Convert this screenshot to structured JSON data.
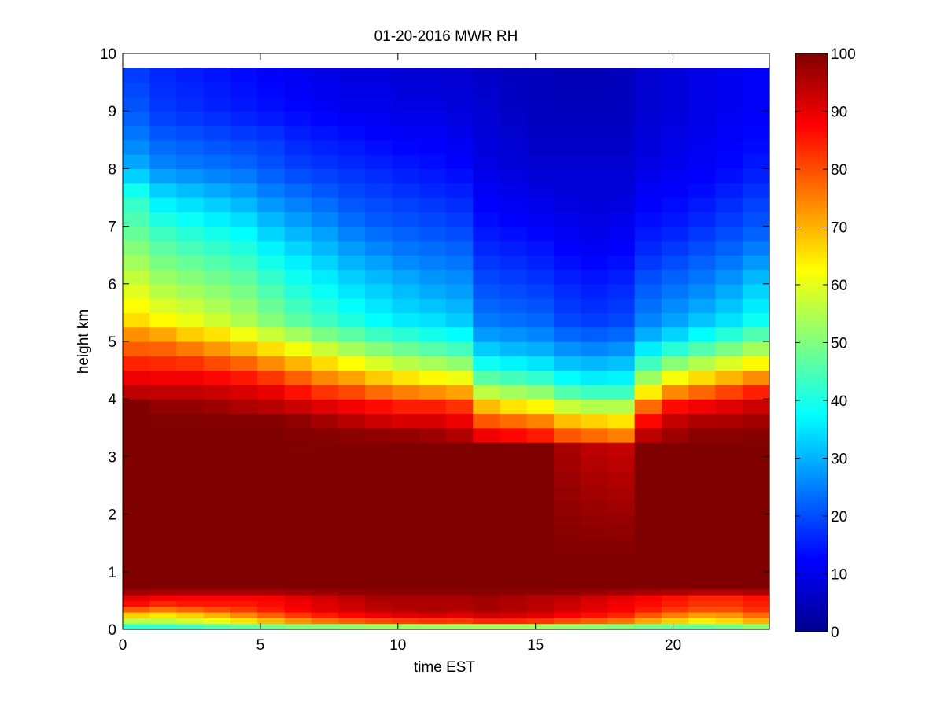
{
  "chart_data": {
    "type": "heatmap",
    "title": "01-20-2016 MWR RH",
    "xlabel": "time EST",
    "ylabel": "height km",
    "xlim": [
      0,
      23.5
    ],
    "ylim": [
      0,
      10
    ],
    "x_ticks": [
      0,
      5,
      10,
      15,
      20
    ],
    "y_ticks": [
      0,
      1,
      2,
      3,
      4,
      5,
      6,
      7,
      8,
      9,
      10
    ],
    "colorbar": {
      "range": [
        0,
        100
      ],
      "ticks": [
        0,
        10,
        20,
        30,
        40,
        50,
        60,
        70,
        80,
        90,
        100
      ],
      "colormap": "jet"
    },
    "x": [
      0.5,
      1.5,
      2.5,
      3.5,
      4.5,
      5.5,
      6.5,
      7.5,
      8.5,
      9.5,
      10.5,
      11.5,
      12.5,
      13.5,
      14.5,
      15.5,
      16.5,
      17.5,
      18.5,
      19.5,
      20.5,
      21.5,
      22.5,
      23.5
    ],
    "y": [
      0,
      0.1,
      0.2,
      0.3,
      0.4,
      0.5,
      0.6,
      0.7,
      0.8,
      0.9,
      1.0,
      1.1,
      1.2,
      1.3,
      1.4,
      1.5,
      1.6,
      1.8,
      2.0,
      2.25,
      2.5,
      2.75,
      3.0,
      3.25,
      3.5,
      3.75,
      4.0,
      4.25,
      4.5,
      4.75,
      5.0,
      5.25,
      5.5,
      5.75,
      6.0,
      6.25,
      6.5,
      6.75,
      7.0,
      7.25,
      7.5,
      7.75,
      8.0,
      8.25,
      8.5,
      8.75,
      9.0,
      9.25,
      9.5,
      9.75
    ],
    "z_profile_knots": {
      "heights": [
        0.0,
        0.1,
        0.2,
        0.3,
        0.4,
        0.55,
        0.7,
        0.85,
        1.0,
        1.15,
        1.2,
        1.25,
        3.2,
        3.3,
        3.6,
        3.9,
        4.2,
        4.5,
        4.8,
        5.1,
        5.4,
        6.0,
        6.5,
        7.0,
        7.5,
        8.0,
        8.5,
        9.0,
        9.75
      ],
      "note_values_rh": "per-time vertical profiles below"
    },
    "profiles_rh": [
      [
        35,
        50,
        62,
        72,
        85,
        90,
        100,
        100,
        100,
        100,
        100,
        100,
        100,
        100,
        100,
        100,
        92,
        87,
        80,
        74,
        65,
        58,
        52,
        46,
        42,
        30,
        25,
        21,
        18
      ],
      [
        34,
        52,
        60,
        70,
        82,
        88,
        100,
        100,
        100,
        100,
        100,
        100,
        100,
        100,
        100,
        98,
        92,
        86,
        80,
        72,
        62,
        54,
        48,
        42,
        35,
        26,
        22,
        18,
        16
      ],
      [
        33,
        55,
        62,
        72,
        84,
        88,
        100,
        100,
        100,
        100,
        100,
        100,
        100,
        100,
        100,
        98,
        92,
        86,
        78,
        68,
        60,
        52,
        46,
        40,
        33,
        25,
        21,
        17,
        15
      ],
      [
        33,
        58,
        64,
        76,
        84,
        88,
        100,
        100,
        100,
        100,
        100,
        100,
        100,
        100,
        100,
        97,
        91,
        84,
        75,
        66,
        57,
        50,
        44,
        38,
        31,
        24,
        20,
        16,
        14
      ],
      [
        32,
        62,
        68,
        80,
        84,
        88,
        100,
        100,
        100,
        100,
        100,
        100,
        100,
        100,
        100,
        95,
        90,
        82,
        72,
        62,
        54,
        48,
        42,
        36,
        29,
        23,
        19,
        15,
        13
      ],
      [
        32,
        66,
        72,
        84,
        86,
        88,
        100,
        100,
        100,
        100,
        100,
        100,
        100,
        100,
        100,
        94,
        88,
        78,
        68,
        58,
        50,
        44,
        38,
        32,
        26,
        21,
        18,
        14,
        12
      ],
      [
        31,
        70,
        76,
        88,
        88,
        90,
        100,
        100,
        100,
        100,
        100,
        100,
        100,
        100,
        99,
        92,
        84,
        74,
        64,
        54,
        46,
        40,
        35,
        29,
        24,
        19,
        16,
        13,
        11
      ],
      [
        30,
        72,
        80,
        90,
        90,
        92,
        100,
        100,
        100,
        100,
        100,
        100,
        100,
        100,
        97,
        90,
        80,
        70,
        60,
        50,
        43,
        37,
        32,
        27,
        22,
        18,
        15,
        12,
        10
      ],
      [
        30,
        74,
        82,
        92,
        92,
        94,
        100,
        100,
        100,
        100,
        100,
        100,
        100,
        100,
        95,
        88,
        78,
        67,
        56,
        47,
        40,
        34,
        29,
        24,
        20,
        17,
        14,
        11,
        9
      ],
      [
        30,
        76,
        84,
        94,
        94,
        96,
        100,
        100,
        100,
        100,
        100,
        100,
        100,
        100,
        93,
        86,
        74,
        63,
        53,
        44,
        37,
        32,
        27,
        22,
        19,
        16,
        13,
        11,
        9
      ],
      [
        29,
        77,
        86,
        95,
        95,
        96,
        100,
        100,
        100,
        100,
        100,
        100,
        100,
        100,
        92,
        84,
        72,
        60,
        50,
        42,
        35,
        30,
        25,
        21,
        18,
        15,
        12,
        10,
        8
      ],
      [
        29,
        78,
        87,
        96,
        95,
        96,
        100,
        100,
        100,
        100,
        100,
        100,
        100,
        99,
        92,
        84,
        70,
        58,
        48,
        40,
        34,
        28,
        24,
        20,
        17,
        14,
        12,
        10,
        8
      ],
      [
        29,
        78,
        86,
        95,
        95,
        96,
        100,
        100,
        100,
        100,
        100,
        100,
        100,
        97,
        90,
        82,
        68,
        56,
        46,
        38,
        32,
        27,
        23,
        19,
        16,
        13,
        11,
        9,
        8
      ],
      [
        28,
        80,
        88,
        96,
        96,
        97,
        100,
        100,
        100,
        100,
        100,
        100,
        100,
        92,
        80,
        68,
        52,
        42,
        34,
        28,
        24,
        20,
        17,
        14,
        12,
        10,
        9,
        8,
        7
      ],
      [
        28,
        80,
        88,
        95,
        95,
        96,
        100,
        100,
        100,
        100,
        100,
        100,
        100,
        90,
        78,
        64,
        50,
        40,
        32,
        27,
        23,
        19,
        16,
        13,
        11,
        9,
        8,
        7,
        6
      ],
      [
        28,
        79,
        86,
        94,
        94,
        95,
        100,
        100,
        100,
        100,
        100,
        100,
        100,
        88,
        76,
        62,
        48,
        38,
        31,
        26,
        22,
        18,
        15,
        12,
        10,
        8,
        7,
        6,
        6
      ],
      [
        28,
        76,
        84,
        92,
        92,
        94,
        100,
        100,
        100,
        100,
        100,
        100,
        96,
        82,
        70,
        56,
        42,
        34,
        28,
        23,
        19,
        16,
        13,
        11,
        9,
        8,
        7,
        6,
        5
      ],
      [
        29,
        74,
        82,
        90,
        90,
        92,
        100,
        100,
        100,
        100,
        100,
        100,
        94,
        80,
        68,
        54,
        40,
        33,
        27,
        22,
        18,
        15,
        12,
        10,
        9,
        8,
        7,
        6,
        5
      ],
      [
        29,
        72,
        80,
        88,
        88,
        90,
        100,
        100,
        100,
        100,
        100,
        100,
        93,
        78,
        66,
        54,
        40,
        34,
        28,
        23,
        19,
        16,
        13,
        11,
        9,
        8,
        7,
        6,
        6
      ],
      [
        30,
        68,
        74,
        84,
        86,
        88,
        100,
        100,
        100,
        100,
        100,
        100,
        100,
        96,
        88,
        76,
        60,
        48,
        38,
        30,
        25,
        21,
        17,
        14,
        12,
        10,
        9,
        8,
        8
      ],
      [
        32,
        64,
        70,
        80,
        84,
        86,
        100,
        100,
        100,
        100,
        100,
        100,
        100,
        98,
        94,
        86,
        70,
        56,
        44,
        34,
        28,
        23,
        19,
        15,
        13,
        11,
        10,
        9,
        9
      ],
      [
        33,
        62,
        66,
        78,
        82,
        84,
        100,
        100,
        100,
        100,
        100,
        100,
        100,
        100,
        96,
        88,
        74,
        60,
        48,
        38,
        31,
        25,
        21,
        17,
        14,
        12,
        11,
        10,
        10
      ],
      [
        34,
        64,
        68,
        78,
        82,
        84,
        100,
        100,
        100,
        100,
        100,
        100,
        100,
        100,
        96,
        90,
        78,
        64,
        52,
        42,
        34,
        28,
        23,
        19,
        16,
        13,
        12,
        11,
        11
      ],
      [
        35,
        68,
        72,
        82,
        84,
        86,
        100,
        100,
        100,
        100,
        100,
        100,
        100,
        100,
        97,
        92,
        82,
        68,
        56,
        46,
        38,
        32,
        26,
        21,
        18,
        15,
        13,
        12,
        12
      ]
    ]
  }
}
